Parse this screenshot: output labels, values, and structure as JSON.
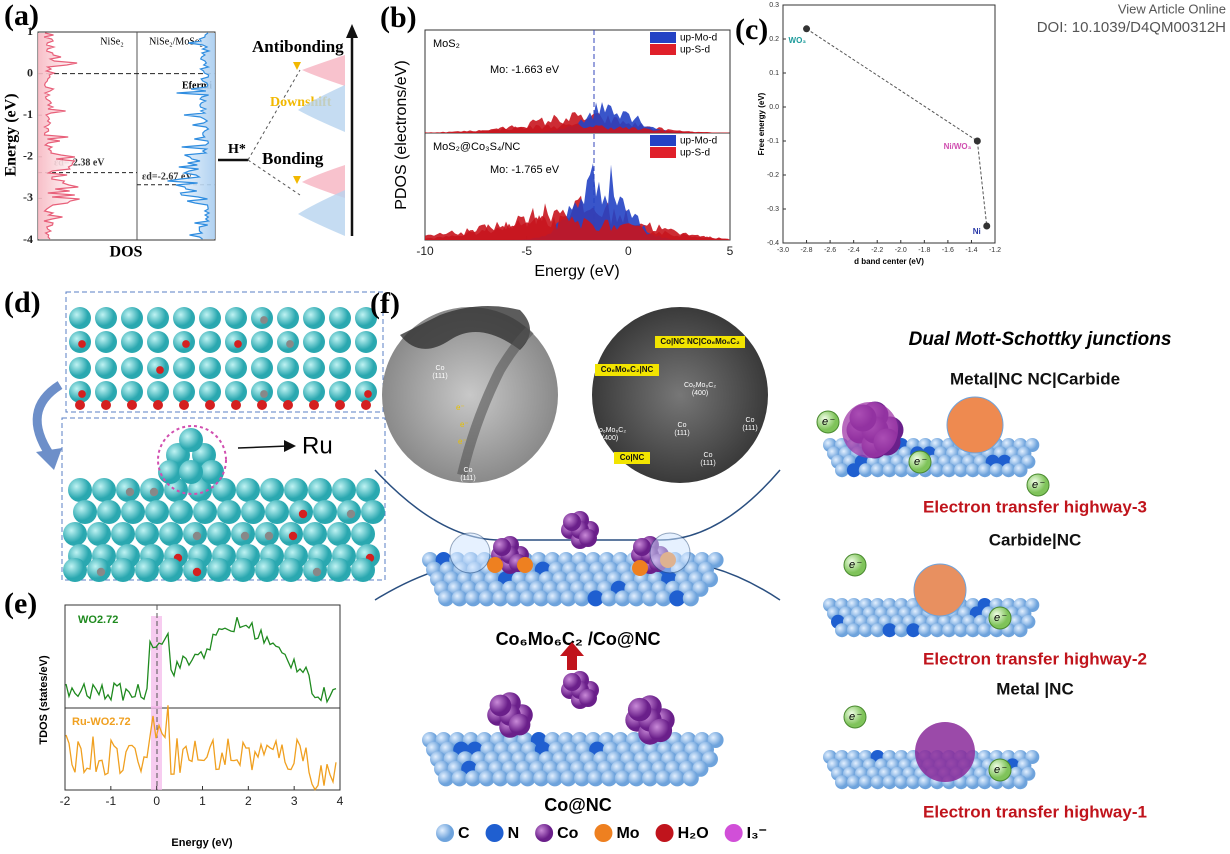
{
  "header": {
    "view_online": "View Article Online",
    "doi": "DOI: 10.1039/D4QM00312H"
  },
  "a": {
    "label": "(a)",
    "ylabel": "Energy (eV)",
    "yticks": [
      1,
      0,
      -1,
      -2,
      -3,
      -4
    ],
    "xlabel": "DOS",
    "left": "NiSe₂",
    "right": "NiSe₂/MoSe₂",
    "fermi": "Efermi",
    "eps_left": "εd=-2.38 eV",
    "eps_right": "εd=-2.67 eV",
    "h": "H*",
    "antibonding": "Antibonding",
    "downshift": "Downshift",
    "bonding": "Bonding"
  },
  "b": {
    "label": "(b)",
    "top_title": "MoS₂",
    "top_mo": "Mo: -1.663 eV",
    "legend": [
      "up-Mo-d",
      "up-S-d"
    ],
    "bottom_title": "MoS₂@Co₃S₄/NC",
    "bottom_mo": "Mo: -1.765 eV",
    "xticks": [
      -10,
      -5,
      0,
      5
    ],
    "xlabel": "Energy (eV)",
    "ylabel": "PDOS (electrons/eV)"
  },
  "c": {
    "label": "(c)",
    "xlabel": "d band center (eV)",
    "ylabel": "Free energy (eV)",
    "xlim": [
      -3.0,
      -1.2
    ],
    "ylim": [
      -0.4,
      0.3
    ],
    "xticks": [
      {
        "value": -3,
        "label": "-3.0"
      },
      -2.8,
      -2.6,
      -2.4,
      -2.2,
      {
        "value": -2,
        "label": "-2.0"
      },
      -1.8,
      -1.6,
      -1.4,
      -1.2
    ],
    "yticks": [
      -0.4,
      -0.3,
      -0.2,
      -0.1,
      {
        "value": 0,
        "label": "0.0"
      },
      0.1,
      0.2,
      0.3
    ],
    "points": [
      {
        "label": "WO₃",
        "x": -2.8,
        "y": 0.23,
        "color": "#1a9a9a"
      },
      {
        "label": "Ni/WO₃",
        "x": -1.35,
        "y": -0.1,
        "color": "#d04fb0"
      },
      {
        "label": "Ni",
        "x": -1.27,
        "y": -0.35,
        "color": "#2a3aa8"
      }
    ]
  },
  "d": {
    "label": "(d)",
    "ru": "Ru"
  },
  "e": {
    "label": "(e)",
    "top": "WO2.72",
    "bottom": "Ru-WO2.72",
    "xticks": [
      -2,
      -1,
      0,
      1,
      2,
      3,
      4
    ],
    "xlabel": "Energy (eV)",
    "ylabel": "TDOS (states/eV)"
  },
  "f": {
    "label": "(f)",
    "title": "Dual Mott-Schottky junctions",
    "j3": "Metal|NC NC|Carbide",
    "h3": "Electron transfer highway-3",
    "j2": "Carbide|NC",
    "h2": "Electron transfer highway-2",
    "j1": "Metal |NC",
    "h1": "Electron transfer highway-1",
    "electron": "e⁻",
    "composite": "Co₆Mo₆C₂ /Co@NC",
    "base": "Co@NC",
    "legend": [
      "C",
      "N",
      "Co",
      "Mo",
      "H₂O",
      "I₃⁻"
    ],
    "tem_co": "Co",
    "tem_111": "(111)",
    "tem_400": "(400)",
    "tem_carbide": "Co₆Mo₆C₂",
    "tag_top": "Co|NC NC|Co₆Mo₆C₂",
    "tag_mid": "Co₆Mo₆C₂|NC",
    "tag_bottom": "Co|NC"
  }
}
